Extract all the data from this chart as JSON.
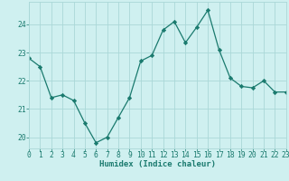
{
  "x": [
    0,
    1,
    2,
    3,
    4,
    5,
    6,
    7,
    8,
    9,
    10,
    11,
    12,
    13,
    14,
    15,
    16,
    17,
    18,
    19,
    20,
    21,
    22,
    23
  ],
  "y": [
    22.8,
    22.5,
    21.4,
    21.5,
    21.3,
    20.5,
    19.8,
    20.0,
    20.7,
    21.4,
    22.7,
    22.9,
    23.8,
    24.1,
    23.35,
    23.9,
    24.5,
    23.1,
    22.1,
    21.8,
    21.75,
    22.0,
    21.6,
    21.6
  ],
  "line_color": "#1a7a6e",
  "marker": "D",
  "marker_size": 2.2,
  "bg_color": "#cff0f0",
  "grid_color": "#aad8d8",
  "xlabel": "Humidex (Indice chaleur)",
  "xlim": [
    0,
    23
  ],
  "ylim": [
    19.6,
    24.8
  ],
  "yticks": [
    20,
    21,
    22,
    23,
    24
  ],
  "xticks": [
    0,
    1,
    2,
    3,
    4,
    5,
    6,
    7,
    8,
    9,
    10,
    11,
    12,
    13,
    14,
    15,
    16,
    17,
    18,
    19,
    20,
    21,
    22,
    23
  ],
  "xtick_labels": [
    "0",
    "1",
    "2",
    "3",
    "4",
    "5",
    "6",
    "7",
    "8",
    "9",
    "10",
    "11",
    "12",
    "13",
    "14",
    "15",
    "16",
    "17",
    "18",
    "19",
    "20",
    "21",
    "22",
    "23"
  ],
  "tick_color": "#1a7a6e",
  "tick_fontsize": 5.8,
  "xlabel_fontsize": 6.5,
  "linewidth": 0.9
}
